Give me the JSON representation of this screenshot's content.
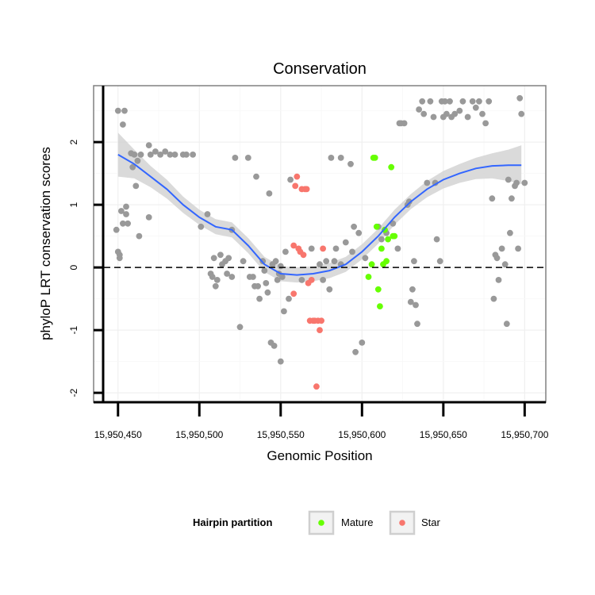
{
  "chart_data": {
    "type": "scatter",
    "title": "Conservation",
    "xlabel": "Genomic Position",
    "ylabel": "phyloP LRT conservation scores",
    "xlim": [
      15950435,
      15950713
    ],
    "ylim": [
      -2.15,
      2.9
    ],
    "x_ticks": [
      15950450,
      15950500,
      15950550,
      15950600,
      15950650,
      15950700
    ],
    "x_tick_labels": [
      "15,950,450",
      "15,950,500",
      "15,950,550",
      "15,950,600",
      "15,950,650",
      "15,950,700"
    ],
    "y_ticks": [
      -2,
      -1,
      0,
      1,
      2
    ],
    "y_tick_labels": [
      "-2",
      "-1",
      "0",
      "1",
      "2"
    ],
    "reference_line": {
      "y": 0,
      "style": "dashed"
    },
    "legend": {
      "title": "Hairpin partition",
      "entries": [
        {
          "name": "Mature",
          "color": "#66ff00"
        },
        {
          "name": "Star",
          "color": "#f8766d"
        }
      ]
    },
    "colors": {
      "other": "#999999",
      "Mature": "#66ff00",
      "Star": "#f8766d",
      "smooth": "#3366ff",
      "band": "#d4d4d4"
    },
    "series": [
      {
        "name": "Other",
        "points": [
          [
            15950449,
            0.6
          ],
          [
            15950450,
            2.5
          ],
          [
            15950450,
            0.25
          ],
          [
            15950451,
            0.15
          ],
          [
            15950451,
            0.2
          ],
          [
            15950452,
            0.9
          ],
          [
            15950453,
            2.28
          ],
          [
            15950453,
            0.7
          ],
          [
            15950454,
            2.5
          ],
          [
            15950455,
            0.97
          ],
          [
            15950455,
            0.85
          ],
          [
            15950456,
            0.7
          ],
          [
            15950458,
            1.82
          ],
          [
            15950459,
            1.6
          ],
          [
            15950460,
            1.8
          ],
          [
            15950461,
            1.3
          ],
          [
            15950462,
            1.7
          ],
          [
            15950463,
            0.5
          ],
          [
            15950464,
            1.8
          ],
          [
            15950469,
            0.8
          ],
          [
            15950469,
            1.95
          ],
          [
            15950470,
            1.8
          ],
          [
            15950473,
            1.85
          ],
          [
            15950476,
            1.8
          ],
          [
            15950479,
            1.85
          ],
          [
            15950482,
            1.8
          ],
          [
            15950485,
            1.8
          ],
          [
            15950490,
            1.8
          ],
          [
            15950492,
            1.8
          ],
          [
            15950496,
            1.8
          ],
          [
            15950501,
            0.65
          ],
          [
            15950505,
            0.85
          ],
          [
            15950507,
            -0.1
          ],
          [
            15950508,
            -0.15
          ],
          [
            15950509,
            0.15
          ],
          [
            15950510,
            -0.3
          ],
          [
            15950511,
            -0.2
          ],
          [
            15950513,
            0.2
          ],
          [
            15950514,
            0.05
          ],
          [
            15950516,
            0.1
          ],
          [
            15950517,
            -0.1
          ],
          [
            15950518,
            0.15
          ],
          [
            15950520,
            -0.15
          ],
          [
            15950520,
            0.6
          ],
          [
            15950522,
            1.75
          ],
          [
            15950525,
            -0.95
          ],
          [
            15950527,
            0.1
          ],
          [
            15950530,
            1.75
          ],
          [
            15950531,
            -0.15
          ],
          [
            15950533,
            -0.15
          ],
          [
            15950534,
            -0.3
          ],
          [
            15950535,
            1.45
          ],
          [
            15950536,
            -0.3
          ],
          [
            15950537,
            -0.5
          ],
          [
            15950539,
            0.1
          ],
          [
            15950540,
            -0.05
          ],
          [
            15950541,
            -0.25
          ],
          [
            15950542,
            -0.4
          ],
          [
            15950543,
            1.18
          ],
          [
            15950544,
            -1.2
          ],
          [
            15950545,
            0.05
          ],
          [
            15950546,
            -1.25
          ],
          [
            15950547,
            0.1
          ],
          [
            15950548,
            -0.2
          ],
          [
            15950549,
            -0.1
          ],
          [
            15950550,
            0.02
          ],
          [
            15950550,
            -1.5
          ],
          [
            15950551,
            -0.15
          ],
          [
            15950552,
            -0.7
          ],
          [
            15950553,
            0.25
          ],
          [
            15950555,
            -0.5
          ],
          [
            15950556,
            1.4
          ],
          [
            15950563,
            -0.2
          ],
          [
            15950569,
            0.3
          ],
          [
            15950574,
            0.05
          ],
          [
            15950576,
            -0.2
          ],
          [
            15950578,
            0.1
          ],
          [
            15950580,
            -0.35
          ],
          [
            15950581,
            1.75
          ],
          [
            15950583,
            0.1
          ],
          [
            15950584,
            0.3
          ],
          [
            15950587,
            1.75
          ],
          [
            15950587,
            0.05
          ],
          [
            15950590,
            0.4
          ],
          [
            15950593,
            1.65
          ],
          [
            15950594,
            0.25
          ],
          [
            15950595,
            0.65
          ],
          [
            15950596,
            -1.35
          ],
          [
            15950598,
            0.55
          ],
          [
            15950600,
            -1.2
          ],
          [
            15950602,
            0.15
          ],
          [
            15950610,
            0.65
          ],
          [
            15950612,
            0.45
          ],
          [
            15950615,
            0.55
          ],
          [
            15950619,
            0.7
          ],
          [
            15950622,
            0.3
          ],
          [
            15950623,
            2.3
          ],
          [
            15950624,
            2.3
          ],
          [
            15950626,
            2.3
          ],
          [
            15950628,
            1.0
          ],
          [
            15950629,
            1.05
          ],
          [
            15950630,
            -0.55
          ],
          [
            15950631,
            -0.35
          ],
          [
            15950632,
            0.1
          ],
          [
            15950633,
            -0.6
          ],
          [
            15950634,
            -0.9
          ],
          [
            15950635,
            2.52
          ],
          [
            15950637,
            2.65
          ],
          [
            15950638,
            2.45
          ],
          [
            15950640,
            1.35
          ],
          [
            15950642,
            2.65
          ],
          [
            15950644,
            2.4
          ],
          [
            15950645,
            1.35
          ],
          [
            15950646,
            0.45
          ],
          [
            15950648,
            0.1
          ],
          [
            15950649,
            2.65
          ],
          [
            15950650,
            2.4
          ],
          [
            15950651,
            2.65
          ],
          [
            15950652,
            2.45
          ],
          [
            15950654,
            2.65
          ],
          [
            15950655,
            2.4
          ],
          [
            15950657,
            2.45
          ],
          [
            15950660,
            2.5
          ],
          [
            15950662,
            2.65
          ],
          [
            15950665,
            2.4
          ],
          [
            15950668,
            2.65
          ],
          [
            15950670,
            2.55
          ],
          [
            15950672,
            2.65
          ],
          [
            15950674,
            2.45
          ],
          [
            15950676,
            2.3
          ],
          [
            15950678,
            2.65
          ],
          [
            15950680,
            1.1
          ],
          [
            15950681,
            -0.5
          ],
          [
            15950682,
            0.2
          ],
          [
            15950683,
            0.15
          ],
          [
            15950684,
            -0.2
          ],
          [
            15950686,
            0.3
          ],
          [
            15950688,
            0.05
          ],
          [
            15950689,
            -0.9
          ],
          [
            15950690,
            1.4
          ],
          [
            15950691,
            0.55
          ],
          [
            15950692,
            1.1
          ],
          [
            15950694,
            1.3
          ],
          [
            15950695,
            1.35
          ],
          [
            15950696,
            0.3
          ],
          [
            15950697,
            2.7
          ],
          [
            15950698,
            2.45
          ],
          [
            15950700,
            1.35
          ]
        ]
      },
      {
        "name": "Mature",
        "points": [
          [
            15950604,
            -0.15
          ],
          [
            15950606,
            0.05
          ],
          [
            15950607,
            1.75
          ],
          [
            15950608,
            1.75
          ],
          [
            15950609,
            0.65
          ],
          [
            15950610,
            -0.35
          ],
          [
            15950611,
            -0.62
          ],
          [
            15950612,
            0.3
          ],
          [
            15950613,
            0.05
          ],
          [
            15950614,
            0.6
          ],
          [
            15950615,
            0.1
          ],
          [
            15950616,
            0.45
          ],
          [
            15950618,
            1.6
          ],
          [
            15950619,
            0.5
          ],
          [
            15950620,
            0.5
          ]
        ]
      },
      {
        "name": "Star",
        "points": [
          [
            15950558,
            0.35
          ],
          [
            15950559,
            1.3
          ],
          [
            15950560,
            1.45
          ],
          [
            15950561,
            0.3
          ],
          [
            15950562,
            0.25
          ],
          [
            15950563,
            1.25
          ],
          [
            15950564,
            0.2
          ],
          [
            15950565,
            1.25
          ],
          [
            15950566,
            1.25
          ],
          [
            15950567,
            -0.25
          ],
          [
            15950568,
            -0.85
          ],
          [
            15950569,
            -0.2
          ],
          [
            15950570,
            -0.85
          ],
          [
            15950571,
            -0.85
          ],
          [
            15950572,
            -1.9
          ],
          [
            15950573,
            -0.85
          ],
          [
            15950574,
            -1.0
          ],
          [
            15950575,
            -0.85
          ],
          [
            15950576,
            0.3
          ],
          [
            15950558,
            -0.42
          ]
        ]
      }
    ],
    "smooth_line": [
      [
        15950450,
        1.8
      ],
      [
        15950460,
        1.65
      ],
      [
        15950470,
        1.45
      ],
      [
        15950480,
        1.25
      ],
      [
        15950490,
        1.0
      ],
      [
        15950500,
        0.8
      ],
      [
        15950510,
        0.65
      ],
      [
        15950520,
        0.6
      ],
      [
        15950530,
        0.35
      ],
      [
        15950540,
        0.05
      ],
      [
        15950550,
        -0.1
      ],
      [
        15950560,
        -0.12
      ],
      [
        15950570,
        -0.1
      ],
      [
        15950580,
        -0.05
      ],
      [
        15950590,
        0.05
      ],
      [
        15950600,
        0.25
      ],
      [
        15950610,
        0.5
      ],
      [
        15950620,
        0.8
      ],
      [
        15950630,
        1.05
      ],
      [
        15950640,
        1.25
      ],
      [
        15950650,
        1.4
      ],
      [
        15950660,
        1.5
      ],
      [
        15950670,
        1.58
      ],
      [
        15950680,
        1.62
      ],
      [
        15950690,
        1.63
      ],
      [
        15950698,
        1.63
      ]
    ],
    "smooth_band": [
      [
        15950450,
        1.45,
        2.15
      ],
      [
        15950460,
        1.42,
        1.88
      ],
      [
        15950470,
        1.28,
        1.62
      ],
      [
        15950480,
        1.1,
        1.4
      ],
      [
        15950490,
        0.87,
        1.13
      ],
      [
        15950500,
        0.68,
        0.92
      ],
      [
        15950510,
        0.53,
        0.77
      ],
      [
        15950520,
        0.48,
        0.72
      ],
      [
        15950530,
        0.23,
        0.47
      ],
      [
        15950540,
        -0.07,
        0.17
      ],
      [
        15950550,
        -0.22,
        0.02
      ],
      [
        15950560,
        -0.24,
        0.0
      ],
      [
        15950570,
        -0.22,
        0.02
      ],
      [
        15950580,
        -0.17,
        0.07
      ],
      [
        15950590,
        -0.07,
        0.17
      ],
      [
        15950600,
        0.13,
        0.37
      ],
      [
        15950610,
        0.38,
        0.62
      ],
      [
        15950620,
        0.68,
        0.92
      ],
      [
        15950630,
        0.93,
        1.17
      ],
      [
        15950640,
        1.12,
        1.38
      ],
      [
        15950650,
        1.26,
        1.54
      ],
      [
        15950660,
        1.35,
        1.65
      ],
      [
        15950670,
        1.41,
        1.75
      ],
      [
        15950680,
        1.42,
        1.82
      ],
      [
        15950690,
        1.38,
        1.88
      ],
      [
        15950698,
        1.33,
        1.95
      ]
    ]
  }
}
